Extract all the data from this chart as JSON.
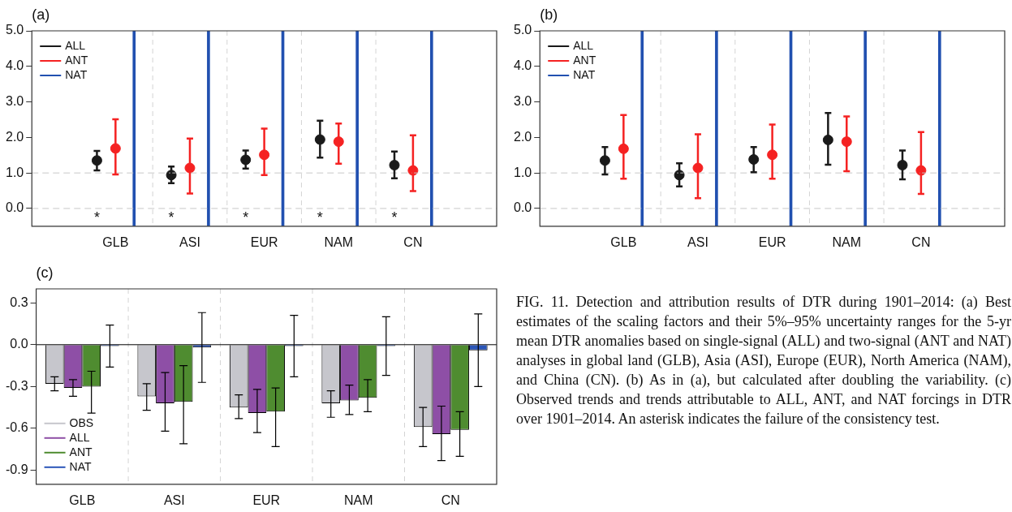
{
  "chart_data": [
    {
      "type": "scatter",
      "title": "(a)",
      "categories": [
        "GLB",
        "ASI",
        "EUR",
        "NAM",
        "CN"
      ],
      "marker": "circle",
      "legend": "top left",
      "grid": "x",
      "ylim": [
        -0.5,
        5.0
      ],
      "yticks": [
        {
          "value": 0,
          "label": "0.0"
        },
        {
          "value": 1,
          "label": "1.0"
        },
        {
          "value": 2,
          "label": "2.0"
        },
        {
          "value": 3,
          "label": "3.0"
        },
        {
          "value": 4,
          "label": "4.0"
        },
        {
          "value": 5,
          "label": "5.0"
        }
      ],
      "series": [
        {
          "name": "ALL",
          "color": "#1a1a1a",
          "values": [
            1.35,
            0.94,
            1.37,
            1.94,
            1.22
          ],
          "errors": [
            [
              1.07,
              1.62
            ],
            [
              0.71,
              1.18
            ],
            [
              1.12,
              1.63
            ],
            [
              1.43,
              2.47
            ],
            [
              0.85,
              1.6
            ]
          ]
        },
        {
          "name": "ANT",
          "color": "#f52222",
          "values": [
            1.69,
            1.14,
            1.51,
            1.88,
            1.07
          ],
          "errors": [
            [
              0.96,
              2.51
            ],
            [
              0.42,
              1.97
            ],
            [
              0.94,
              2.25
            ],
            [
              1.26,
              2.39
            ],
            [
              0.49,
              2.06
            ]
          ]
        },
        {
          "name": "NAT",
          "color": "#2150b0",
          "type": "bar",
          "base": [
            -0.5,
            -0.5,
            -0.5,
            -0.5,
            -0.5
          ],
          "values": [
            5.5,
            5.5,
            5.5,
            5.5,
            5.5
          ]
        }
      ],
      "ref_lines": [
        {
          "axis": "y",
          "value": 0,
          "color": "#c8c8c8",
          "line_style": "dashed"
        },
        {
          "axis": "y",
          "value": 1,
          "color": "#c8c8c8",
          "line_style": "dashed"
        }
      ],
      "annotations": [
        "*",
        "*",
        "*",
        "*",
        "*"
      ]
    },
    {
      "type": "scatter",
      "title": "(b)",
      "categories": [
        "GLB",
        "ASI",
        "EUR",
        "NAM",
        "CN"
      ],
      "marker": "circle",
      "legend": "top left",
      "grid": "x",
      "ylim": [
        -0.5,
        5.0
      ],
      "yticks": [
        {
          "value": 0,
          "label": "0.0"
        },
        {
          "value": 1,
          "label": "1.0"
        },
        {
          "value": 2,
          "label": "2.0"
        },
        {
          "value": 3,
          "label": "3.0"
        },
        {
          "value": 4,
          "label": "4.0"
        },
        {
          "value": 5,
          "label": "5.0"
        }
      ],
      "series": [
        {
          "name": "ALL",
          "color": "#1a1a1a",
          "values": [
            1.35,
            0.94,
            1.38,
            1.93,
            1.22
          ],
          "errors": [
            [
              0.96,
              1.73
            ],
            [
              0.62,
              1.27
            ],
            [
              1.02,
              1.73
            ],
            [
              1.23,
              2.69
            ],
            [
              0.82,
              1.63
            ]
          ]
        },
        {
          "name": "ANT",
          "color": "#f52222",
          "values": [
            1.68,
            1.14,
            1.51,
            1.88,
            1.07
          ],
          "errors": [
            [
              0.84,
              2.63
            ],
            [
              0.29,
              2.09
            ],
            [
              0.84,
              2.36
            ],
            [
              1.05,
              2.59
            ],
            [
              0.41,
              2.15
            ]
          ]
        },
        {
          "name": "NAT",
          "color": "#2150b0",
          "type": "bar",
          "base": [
            -0.5,
            -0.5,
            -0.5,
            -0.5,
            -0.5
          ],
          "values": [
            5.5,
            5.5,
            5.5,
            5.5,
            5.5
          ]
        }
      ],
      "ref_lines": [
        {
          "axis": "y",
          "value": 0,
          "color": "#c8c8c8",
          "line_style": "dashed"
        },
        {
          "axis": "y",
          "value": 1,
          "color": "#c8c8c8",
          "line_style": "dashed"
        }
      ]
    },
    {
      "type": "bar",
      "title": "(c)",
      "categories": [
        "GLB",
        "ASI",
        "EUR",
        "NAM",
        "CN"
      ],
      "legend": "bottom left",
      "grid": "x",
      "ylim": [
        -1.0,
        0.4
      ],
      "yticks": [
        -0.9,
        -0.6,
        -0.3,
        {
          "value": 0,
          "label": "0.0"
        },
        0.3
      ],
      "series": [
        {
          "name": "OBS",
          "color": "#c6c6cc",
          "values": [
            -0.28,
            -0.37,
            -0.45,
            -0.42,
            -0.59
          ],
          "errors": [
            [
              -0.33,
              -0.23
            ],
            [
              -0.47,
              -0.28
            ],
            [
              -0.53,
              -0.36
            ],
            [
              -0.52,
              -0.33
            ],
            [
              -0.73,
              -0.45
            ]
          ]
        },
        {
          "name": "ALL",
          "color": "#8e4fa6",
          "values": [
            -0.31,
            -0.42,
            -0.49,
            -0.4,
            -0.64
          ],
          "errors": [
            [
              -0.37,
              -0.25
            ],
            [
              -0.62,
              -0.2
            ],
            [
              -0.63,
              -0.32
            ],
            [
              -0.5,
              -0.29
            ],
            [
              -0.83,
              -0.44
            ]
          ]
        },
        {
          "name": "ANT",
          "color": "#4f8c30",
          "values": [
            -0.3,
            -0.41,
            -0.48,
            -0.38,
            -0.61
          ],
          "errors": [
            [
              -0.49,
              -0.19
            ],
            [
              -0.71,
              -0.15
            ],
            [
              -0.73,
              -0.31
            ],
            [
              -0.48,
              -0.25
            ],
            [
              -0.8,
              -0.48
            ]
          ]
        },
        {
          "name": "NAT",
          "color": "#2a55b8",
          "values": [
            -0.01,
            -0.02,
            -0.01,
            -0.01,
            -0.04
          ],
          "errors": [
            [
              -0.16,
              0.14
            ],
            [
              -0.27,
              0.23
            ],
            [
              -0.23,
              0.21
            ],
            [
              -0.22,
              0.2
            ],
            [
              -0.3,
              0.22
            ]
          ]
        }
      ],
      "ref_lines": [
        {
          "axis": "y",
          "value": 0,
          "color": "#000000",
          "line_style": "solid"
        }
      ]
    },
    {
      "type": "other",
      "annotations": [
        "FIG. 11. Detection and attribution results of DTR during 1901–2014: (a) Best estimates of the scaling factors and their 5%–95% uncertainty ranges for the 5-yr mean DTR anomalies based on single-signal (ALL) and two-signal (ANT and NAT) analyses in global land (GLB), Asia (ASI), Europe (EUR), North America (NAM), and China (CN). (b) As in (a), but calculated after doubling the variability. (c) Observed trends and trends attributable to ALL, ANT, and NAT forcings in DTR over 1901–2014. An asterisk indicates the failure of the consistency test."
      ]
    }
  ]
}
